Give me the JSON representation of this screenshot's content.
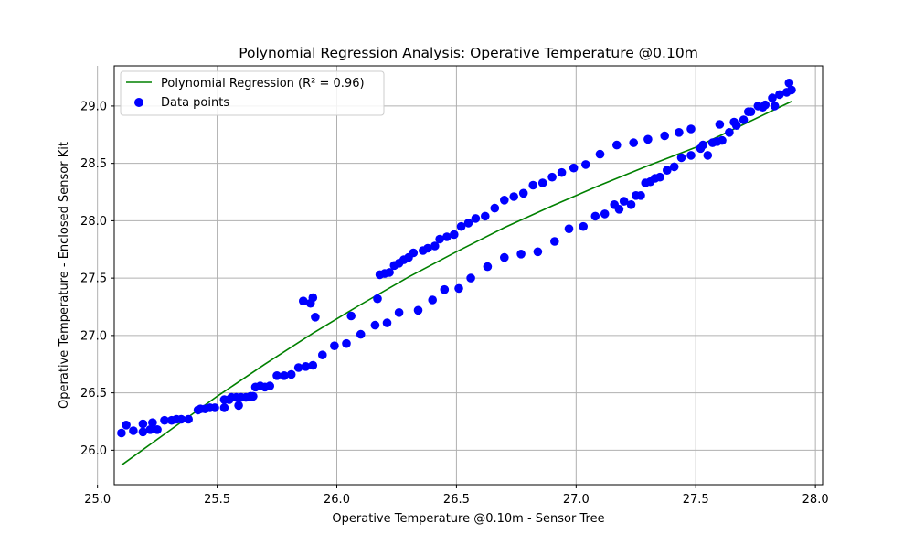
{
  "chart_data": {
    "type": "scatter",
    "title": "Polynomial Regression Analysis: Operative Temperature @0.10m",
    "xlabel": "Operative Temperature @0.10m - Sensor Tree",
    "ylabel": "Operative Temperature - Enclosed Sensor Kit",
    "xlim": [
      25.07,
      28.03
    ],
    "ylim": [
      25.7,
      29.35
    ],
    "xticks": [
      25.0,
      25.5,
      26.0,
      26.5,
      27.0,
      27.5,
      28.0
    ],
    "xtick_labels": [
      "25.0",
      "25.5",
      "26.0",
      "26.5",
      "27.0",
      "27.5",
      "28.0"
    ],
    "yticks": [
      26.0,
      26.5,
      27.0,
      27.5,
      28.0,
      28.5,
      29.0
    ],
    "ytick_labels": [
      "26.0",
      "26.5",
      "27.0",
      "27.5",
      "28.0",
      "28.5",
      "29.0"
    ],
    "grid": true,
    "legend_position": "top-left",
    "colors": {
      "regression": "#008000",
      "points": "#0000ff",
      "grid": "#b0b0b0"
    },
    "series": [
      {
        "name": "Polynomial Regression (R² = 0.96)",
        "kind": "line",
        "x": [
          25.1,
          25.3,
          25.5,
          25.7,
          25.9,
          26.1,
          26.3,
          26.5,
          26.7,
          26.9,
          27.1,
          27.3,
          27.5,
          27.7,
          27.9
        ],
        "y": [
          25.87,
          26.17,
          26.47,
          26.75,
          27.02,
          27.27,
          27.51,
          27.73,
          27.94,
          28.13,
          28.31,
          28.48,
          28.64,
          28.84,
          29.04
        ]
      },
      {
        "name": "Data points",
        "kind": "scatter",
        "x": [
          25.1,
          25.12,
          25.15,
          25.19,
          25.19,
          25.22,
          25.23,
          25.25,
          25.28,
          25.31,
          25.33,
          25.35,
          25.38,
          25.42,
          25.43,
          25.45,
          25.47,
          25.49,
          25.53,
          25.53,
          25.55,
          25.56,
          25.58,
          25.59,
          25.6,
          25.62,
          25.64,
          25.65,
          25.66,
          25.68,
          25.7,
          25.72,
          25.75,
          25.78,
          25.81,
          25.84,
          25.87,
          25.9,
          25.94,
          25.99,
          26.04,
          26.1,
          26.16,
          26.21,
          26.26,
          26.34,
          26.4,
          26.45,
          26.51,
          26.56,
          26.63,
          26.7,
          26.77,
          26.84,
          26.91,
          26.97,
          27.03,
          27.08,
          27.12,
          27.16,
          27.18,
          27.2,
          27.23,
          27.25,
          27.27,
          27.29,
          27.31,
          27.33,
          27.35,
          27.38,
          27.41,
          27.44,
          27.48,
          27.52,
          27.55,
          27.57,
          27.59,
          27.61,
          27.64,
          27.67,
          27.7,
          27.73,
          27.76,
          27.79,
          27.82,
          27.85,
          27.88,
          27.9,
          25.86,
          25.89,
          25.9,
          25.91,
          26.06,
          26.17,
          26.18,
          26.2,
          26.22,
          26.24,
          26.26,
          26.28,
          26.3,
          26.32,
          26.36,
          26.38,
          26.41,
          26.43,
          26.46,
          26.49,
          26.52,
          26.55,
          26.58,
          26.62,
          26.66,
          26.7,
          26.74,
          26.78,
          26.82,
          26.86,
          26.9,
          26.94,
          26.99,
          27.04,
          27.1,
          27.17,
          27.24,
          27.3,
          27.37,
          27.43,
          27.48,
          27.53,
          27.6,
          27.66,
          27.72,
          27.78,
          27.83,
          27.89
        ],
        "y": [
          26.15,
          26.22,
          26.17,
          26.16,
          26.23,
          26.18,
          26.24,
          26.18,
          26.26,
          26.26,
          26.27,
          26.27,
          26.27,
          26.35,
          26.36,
          26.36,
          26.37,
          26.37,
          26.37,
          26.44,
          26.44,
          26.46,
          26.46,
          26.39,
          26.46,
          26.46,
          26.47,
          26.47,
          26.55,
          26.56,
          26.55,
          26.56,
          26.65,
          26.65,
          26.66,
          26.72,
          26.73,
          26.74,
          26.83,
          26.91,
          26.93,
          27.01,
          27.09,
          27.11,
          27.2,
          27.22,
          27.31,
          27.4,
          27.41,
          27.5,
          27.6,
          27.68,
          27.71,
          27.73,
          27.82,
          27.93,
          27.95,
          28.04,
          28.06,
          28.14,
          28.1,
          28.17,
          28.14,
          28.22,
          28.22,
          28.33,
          28.34,
          28.37,
          28.38,
          28.44,
          28.47,
          28.55,
          28.57,
          28.63,
          28.57,
          28.68,
          28.69,
          28.7,
          28.77,
          28.83,
          28.88,
          28.95,
          29.0,
          29.01,
          29.07,
          29.1,
          29.12,
          29.14,
          27.3,
          27.28,
          27.33,
          27.16,
          27.17,
          27.32,
          27.53,
          27.54,
          27.55,
          27.61,
          27.63,
          27.66,
          27.68,
          27.72,
          27.74,
          27.76,
          27.78,
          27.84,
          27.86,
          27.88,
          27.95,
          27.98,
          28.02,
          28.04,
          28.11,
          28.18,
          28.21,
          28.24,
          28.31,
          28.33,
          28.38,
          28.42,
          28.46,
          28.49,
          28.58,
          28.66,
          28.68,
          28.71,
          28.74,
          28.77,
          28.8,
          28.66,
          28.84,
          28.86,
          28.95,
          28.99,
          29.0,
          29.2
        ]
      }
    ]
  }
}
